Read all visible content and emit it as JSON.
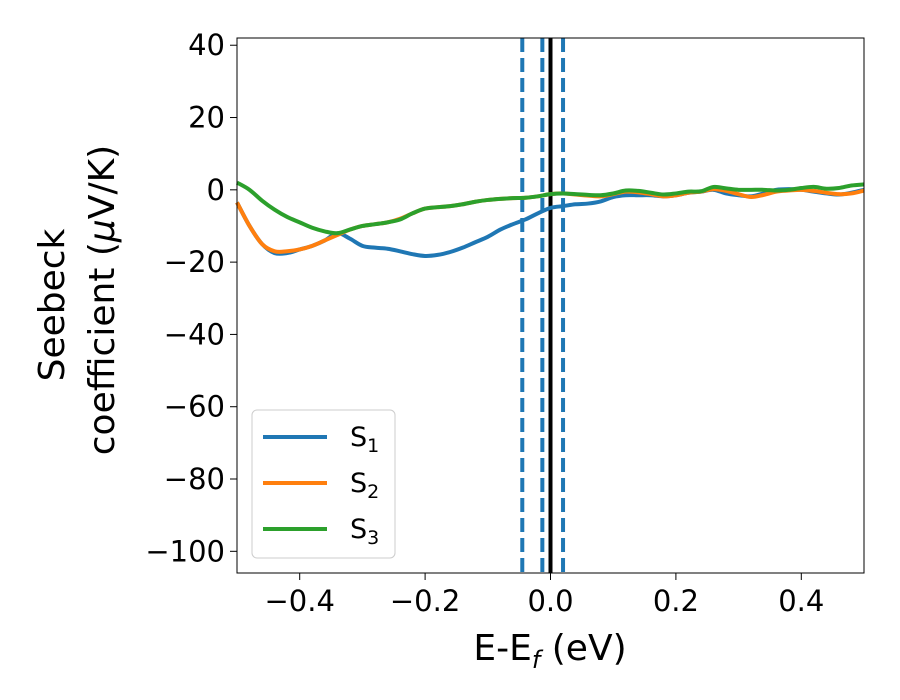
{
  "chart_data": {
    "type": "line",
    "title": "",
    "xlabel": "E-E",
    "xlabel_sub": "f",
    "xlabel_unit": " (eV)",
    "ylabel_line1": "Seebeck",
    "ylabel_line2": "coefficient  (",
    "ylabel_mu": "μ",
    "ylabel_unit": "V/K)",
    "xlim": [
      -0.5,
      0.5
    ],
    "ylim": [
      -106,
      42
    ],
    "xticks": [
      -0.4,
      -0.2,
      0.0,
      0.2,
      0.4
    ],
    "xtick_labels": [
      "−0.4",
      "−0.2",
      "0.0",
      "0.2",
      "0.4"
    ],
    "yticks": [
      40,
      20,
      0,
      -20,
      -40,
      -60,
      -80,
      -100
    ],
    "ytick_labels": [
      "40",
      "20",
      "0",
      "−20",
      "−40",
      "−60",
      "−80",
      "−100"
    ],
    "vlines": [
      {
        "x": -0.045,
        "style": "dashed",
        "color": "#1f77b4"
      },
      {
        "x": -0.013,
        "style": "dashed",
        "color": "#1f77b4"
      },
      {
        "x": 0.0,
        "style": "solid",
        "color": "#000000"
      },
      {
        "x": 0.02,
        "style": "dashed",
        "color": "#1f77b4"
      }
    ],
    "legend_position": "lower-left",
    "series": [
      {
        "name": "S",
        "sub": "1",
        "color": "#1f77b4",
        "x": [
          -0.5,
          -0.48,
          -0.46,
          -0.44,
          -0.42,
          -0.4,
          -0.38,
          -0.36,
          -0.34,
          -0.32,
          -0.3,
          -0.28,
          -0.26,
          -0.24,
          -0.22,
          -0.2,
          -0.18,
          -0.16,
          -0.14,
          -0.12,
          -0.1,
          -0.08,
          -0.06,
          -0.04,
          -0.02,
          0.0,
          0.02,
          0.04,
          0.06,
          0.08,
          0.1,
          0.12,
          0.14,
          0.16,
          0.18,
          0.2,
          0.22,
          0.24,
          0.26,
          0.28,
          0.3,
          0.32,
          0.34,
          0.36,
          0.38,
          0.4,
          0.42,
          0.44,
          0.46,
          0.48,
          0.5
        ],
        "y": [
          -3.5,
          -10,
          -15,
          -17.5,
          -17.5,
          -16.5,
          -15.5,
          -14,
          -12,
          -13.5,
          -15.5,
          -16,
          -16.3,
          -17,
          -17.8,
          -18.3,
          -18,
          -17.2,
          -16,
          -14.5,
          -13,
          -11,
          -9.5,
          -8.2,
          -6.5,
          -5,
          -4.5,
          -4,
          -3.8,
          -3.2,
          -2,
          -1.5,
          -1.5,
          -1.5,
          -1.8,
          -1.5,
          -0.8,
          -0.5,
          0,
          -1,
          -1.5,
          -1.8,
          -1,
          0,
          0.2,
          0,
          -0.5,
          -1,
          -1.3,
          -0.8,
          0
        ]
      },
      {
        "name": "S",
        "sub": "2",
        "color": "#ff7f0e",
        "x": [
          -0.5,
          -0.48,
          -0.46,
          -0.44,
          -0.42,
          -0.4,
          -0.38,
          -0.36,
          -0.34,
          -0.32,
          -0.3,
          -0.28,
          -0.26,
          -0.24,
          -0.22,
          -0.2,
          -0.18,
          -0.16,
          -0.14,
          -0.12,
          -0.1,
          -0.08,
          -0.06,
          -0.04,
          -0.02,
          0.0,
          0.02,
          0.04,
          0.06,
          0.08,
          0.1,
          0.12,
          0.14,
          0.16,
          0.18,
          0.2,
          0.22,
          0.24,
          0.26,
          0.28,
          0.3,
          0.32,
          0.34,
          0.36,
          0.38,
          0.4,
          0.42,
          0.44,
          0.46,
          0.48,
          0.5
        ],
        "y": [
          -3.5,
          -10,
          -15,
          -17,
          -17,
          -16.5,
          -15.5,
          -14,
          -12.5,
          -11,
          -10,
          -9.5,
          -9,
          -8,
          -6.5,
          -5.2,
          -4.8,
          -4.5,
          -4,
          -3.3,
          -2.8,
          -2.5,
          -2.3,
          -2.2,
          -1.8,
          -1.2,
          -1,
          -1.3,
          -1.6,
          -1.8,
          -1.2,
          -0.5,
          -0.7,
          -1.2,
          -1.8,
          -1.5,
          -0.8,
          -0.5,
          0.2,
          -0.3,
          -1.2,
          -2,
          -1.4,
          -0.5,
          -0.2,
          0,
          -0.3,
          -0.8,
          -1.2,
          -1,
          -0.2
        ]
      },
      {
        "name": "S",
        "sub": "3",
        "color": "#2ca02c",
        "x": [
          -0.5,
          -0.48,
          -0.46,
          -0.44,
          -0.42,
          -0.4,
          -0.38,
          -0.36,
          -0.34,
          -0.32,
          -0.3,
          -0.28,
          -0.26,
          -0.24,
          -0.22,
          -0.2,
          -0.18,
          -0.16,
          -0.14,
          -0.12,
          -0.1,
          -0.08,
          -0.06,
          -0.04,
          -0.02,
          0.0,
          0.02,
          0.04,
          0.06,
          0.08,
          0.1,
          0.12,
          0.14,
          0.16,
          0.18,
          0.2,
          0.22,
          0.24,
          0.26,
          0.28,
          0.3,
          0.32,
          0.34,
          0.36,
          0.38,
          0.4,
          0.42,
          0.44,
          0.46,
          0.48,
          0.5
        ],
        "y": [
          2,
          0,
          -3,
          -5.5,
          -7.5,
          -9,
          -10.5,
          -11.5,
          -12,
          -11,
          -10,
          -9.5,
          -9,
          -8.2,
          -6.5,
          -5.2,
          -4.8,
          -4.5,
          -4,
          -3.3,
          -2.8,
          -2.5,
          -2.3,
          -2.2,
          -1.8,
          -1.2,
          -1,
          -1.2,
          -1.4,
          -1.5,
          -1,
          -0.2,
          -0.3,
          -0.8,
          -1.3,
          -1,
          -0.5,
          -0.4,
          0.8,
          0.4,
          0,
          0,
          0,
          -0.2,
          0,
          0.5,
          0.8,
          0.3,
          0.5,
          1.2,
          1.5
        ]
      }
    ]
  }
}
